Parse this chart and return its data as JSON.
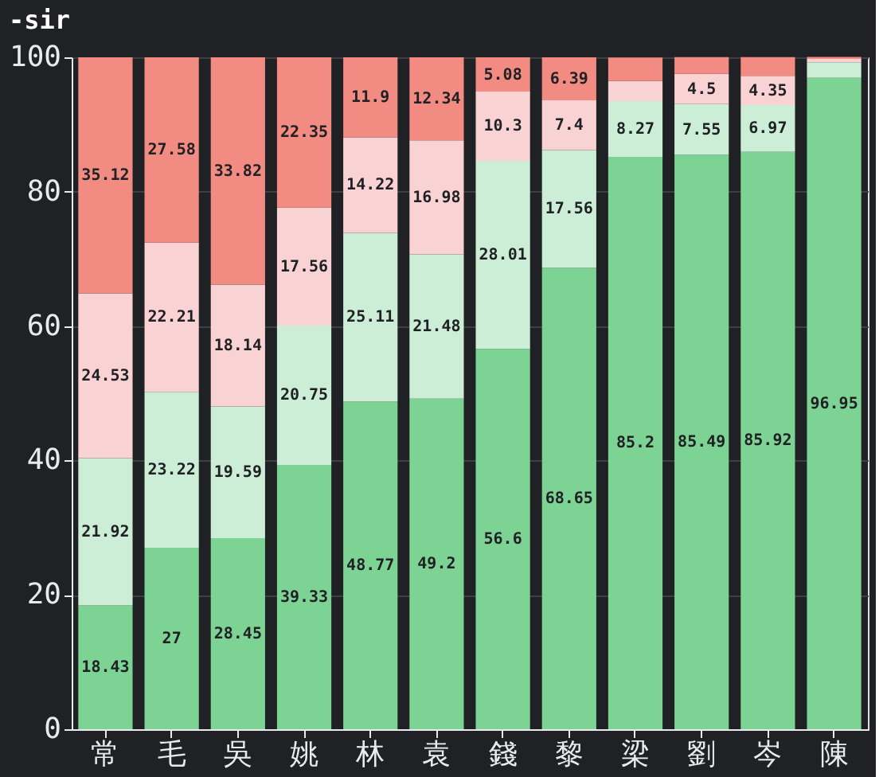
{
  "chart_data": {
    "type": "bar",
    "stacked": true,
    "title": "-sir",
    "categories": [
      "常",
      "毛",
      "吳",
      "姚",
      "林",
      "袁",
      "錢",
      "黎",
      "梁",
      "劉",
      "岑",
      "陳"
    ],
    "series": [
      {
        "color": "#7dd394",
        "values": [
          18.43,
          27,
          28.45,
          39.33,
          48.77,
          49.2,
          56.6,
          68.65,
          85.2,
          85.49,
          85.92,
          96.95
        ],
        "value_labels": [
          "18.43",
          "27",
          "28.45",
          "39.33",
          "48.77",
          "49.2",
          "56.6",
          "68.65",
          "85.2",
          "85.49",
          "85.92",
          "96.95"
        ]
      },
      {
        "color": "#cdeed6",
        "values": [
          21.92,
          23.22,
          19.59,
          20.75,
          25.11,
          21.48,
          28.01,
          17.56,
          8.27,
          7.55,
          6.97,
          2.3
        ],
        "value_labels": [
          "21.92",
          "23.22",
          "19.59",
          "20.75",
          "25.11",
          "21.48",
          "28.01",
          "17.56",
          "8.27",
          "7.55",
          "6.97",
          null
        ]
      },
      {
        "color": "#f9d3d3",
        "values": [
          24.53,
          22.21,
          18.14,
          17.56,
          14.22,
          16.98,
          10.3,
          7.4,
          3,
          4.5,
          4.35,
          0.5
        ],
        "value_labels": [
          "24.53",
          "22.21",
          "18.14",
          "17.56",
          "14.22",
          "16.98",
          "10.3",
          "7.4",
          null,
          "4.5",
          "4.35",
          null
        ]
      },
      {
        "color": "#f28b82",
        "values": [
          35.12,
          27.58,
          33.82,
          22.35,
          11.9,
          12.34,
          5.08,
          6.39,
          3.5,
          2.5,
          2.8,
          0.3
        ],
        "value_labels": [
          "35.12",
          "27.58",
          "33.82",
          "22.35",
          "11.9",
          "12.34",
          "5.08",
          "6.39",
          null,
          null,
          null,
          null
        ]
      }
    ],
    "ylim": [
      0,
      100
    ],
    "yticks": [
      0,
      20,
      40,
      60,
      80,
      100
    ],
    "grid": "y"
  }
}
